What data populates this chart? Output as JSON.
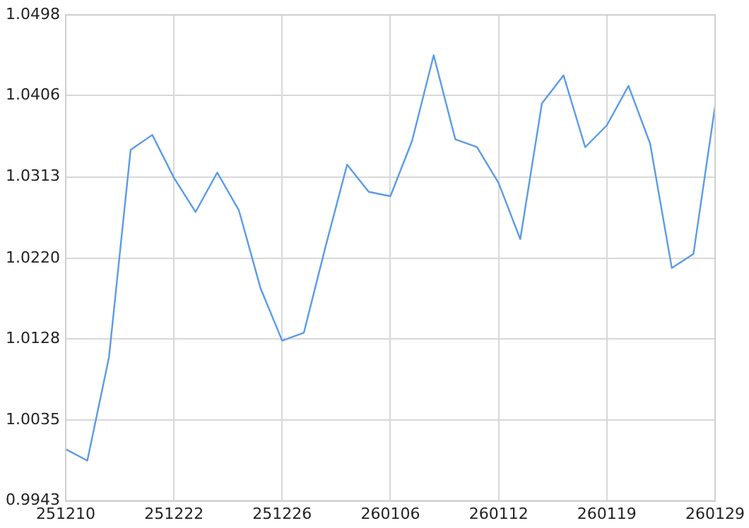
{
  "chart_data": {
    "type": "line",
    "categories": [
      "251210",
      null,
      null,
      null,
      null,
      "251222",
      null,
      null,
      null,
      null,
      "251226",
      null,
      null,
      null,
      null,
      "260106",
      null,
      null,
      null,
      null,
      "260112",
      null,
      null,
      null,
      null,
      "260119",
      null,
      null,
      null,
      null,
      "260129"
    ],
    "series": [
      {
        "color": "#5b9be8",
        "values": [
          1.0002,
          0.9989,
          1.0107,
          1.0344,
          1.0361,
          1.0312,
          1.0273,
          1.0318,
          1.0275,
          1.0186,
          1.0126,
          1.0135,
          1.0233,
          1.0327,
          1.0296,
          1.0291,
          1.0354,
          1.0452,
          1.0356,
          1.0347,
          1.0306,
          1.0242,
          1.0397,
          1.0429,
          1.0347,
          1.0372,
          1.0417,
          1.0351,
          1.0209,
          1.0225,
          1.0394
        ]
      }
    ],
    "ylim": [
      0.9943,
      1.0498
    ],
    "yticks": [
      0.9943,
      1.0035,
      1.0128,
      {
        "value": 1.022,
        "label": "1.0220"
      },
      1.0313,
      1.0406,
      1.0498
    ],
    "grid": true,
    "legend": false,
    "marker": "none",
    "line_style": "solid"
  }
}
